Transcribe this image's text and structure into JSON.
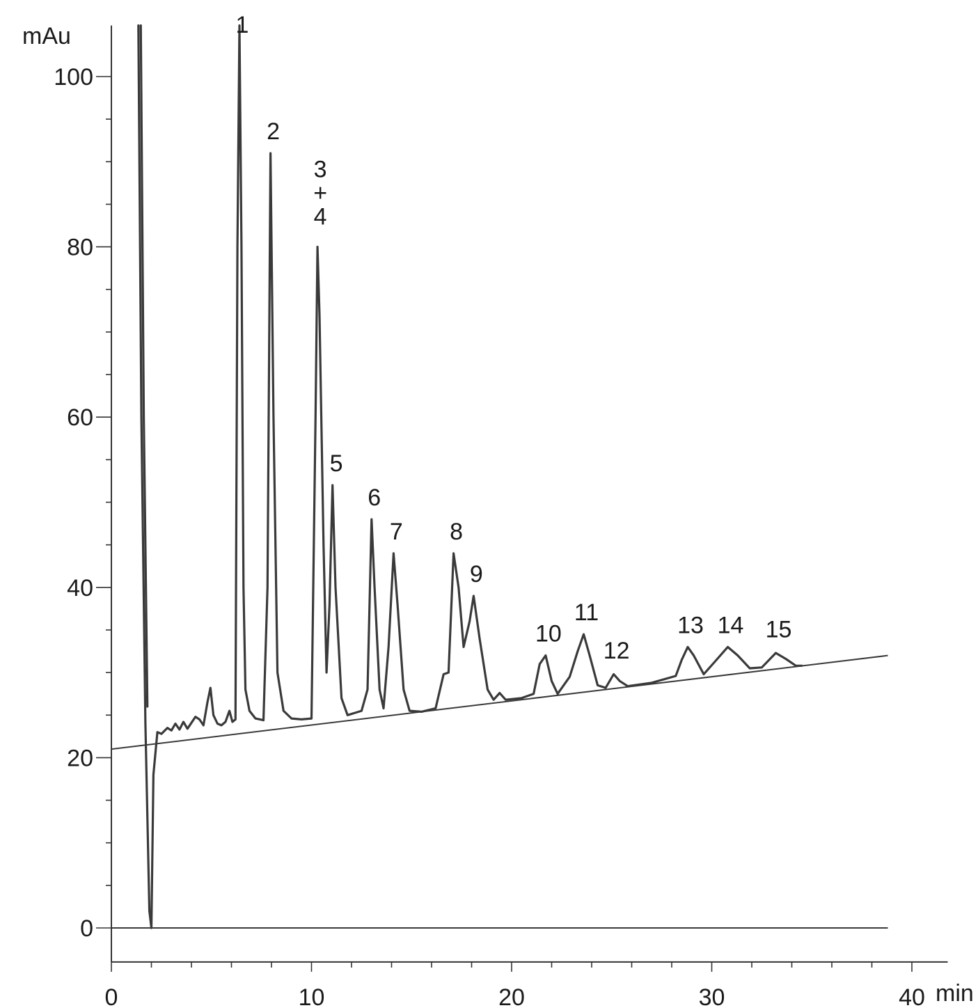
{
  "chart_data": {
    "type": "line",
    "x_unit": "min",
    "y_unit": "mAu",
    "xlim": [
      0,
      42
    ],
    "ylim": [
      -4,
      106
    ],
    "x_ticks": [
      0,
      10,
      20,
      30,
      40
    ],
    "y_ticks": [
      0,
      20,
      40,
      60,
      80,
      100
    ],
    "x_tick_labels": [
      "0",
      "10",
      "20",
      "30",
      "40"
    ],
    "y_tick_labels": [
      "0",
      "20",
      "40",
      "60",
      "80",
      "100"
    ],
    "grid": false,
    "baseline": {
      "start": [
        0,
        21
      ],
      "end": [
        38.8,
        32
      ]
    },
    "zero_line": {
      "start": [
        0,
        0
      ],
      "end": [
        38.8,
        0
      ]
    },
    "peaks": [
      {
        "label": "1",
        "x": 6.4,
        "y": 105
      },
      {
        "label": "2",
        "x": 7.95,
        "y": 91
      },
      {
        "label": "3\n+\n4",
        "lines": [
          "3",
          "+",
          "4"
        ],
        "x": 10.3,
        "y": 80
      },
      {
        "label": "5",
        "x": 11.1,
        "y": 52
      },
      {
        "label": "6",
        "x": 13.0,
        "y": 48
      },
      {
        "label": "7",
        "x": 14.1,
        "y": 44
      },
      {
        "label": "8",
        "x": 17.1,
        "y": 44
      },
      {
        "label": "9",
        "x": 18.1,
        "y": 39
      },
      {
        "label": "10",
        "x": 21.7,
        "y": 32
      },
      {
        "label": "11",
        "x": 23.6,
        "y": 34.5
      },
      {
        "label": "12",
        "x": 25.1,
        "y": 30
      },
      {
        "label": "13",
        "x": 28.8,
        "y": 33
      },
      {
        "label": "14",
        "x": 30.8,
        "y": 33
      },
      {
        "label": "15",
        "x": 33.2,
        "y": 32.5
      }
    ],
    "trace": [
      [
        1.35,
        106
      ],
      [
        1.5,
        60
      ],
      [
        1.7,
        24
      ],
      [
        1.9,
        2
      ],
      [
        2.0,
        0
      ],
      [
        2.1,
        18
      ],
      [
        2.3,
        23
      ],
      [
        2.5,
        22.8
      ],
      [
        2.8,
        23.5
      ],
      [
        3.0,
        23.2
      ],
      [
        3.2,
        24
      ],
      [
        3.4,
        23.3
      ],
      [
        3.6,
        24.2
      ],
      [
        3.8,
        23.4
      ],
      [
        4.0,
        24.1
      ],
      [
        4.2,
        24.8
      ],
      [
        4.4,
        24.5
      ],
      [
        4.6,
        23.8
      ],
      [
        4.8,
        26.5
      ],
      [
        4.95,
        28.2
      ],
      [
        5.1,
        25
      ],
      [
        5.3,
        24
      ],
      [
        5.5,
        23.8
      ],
      [
        5.7,
        24.2
      ],
      [
        5.9,
        25.5
      ],
      [
        6.05,
        24.2
      ],
      [
        6.2,
        24.5
      ],
      [
        6.3,
        80
      ],
      [
        6.4,
        106
      ],
      [
        6.5,
        80
      ],
      [
        6.6,
        40
      ],
      [
        6.7,
        28
      ],
      [
        6.9,
        25.5
      ],
      [
        7.2,
        24.6
      ],
      [
        7.6,
        24.4
      ],
      [
        7.8,
        40
      ],
      [
        7.95,
        91
      ],
      [
        8.1,
        60
      ],
      [
        8.3,
        30
      ],
      [
        8.6,
        25.5
      ],
      [
        9.0,
        24.6
      ],
      [
        9.5,
        24.5
      ],
      [
        10.0,
        24.6
      ],
      [
        10.2,
        60
      ],
      [
        10.3,
        80
      ],
      [
        10.4,
        72
      ],
      [
        10.6,
        45
      ],
      [
        10.75,
        30
      ],
      [
        10.9,
        38
      ],
      [
        11.05,
        52
      ],
      [
        11.2,
        40
      ],
      [
        11.5,
        27
      ],
      [
        11.8,
        25
      ],
      [
        12.5,
        25.5
      ],
      [
        12.8,
        28
      ],
      [
        13.0,
        48
      ],
      [
        13.15,
        40
      ],
      [
        13.4,
        28
      ],
      [
        13.6,
        25.8
      ],
      [
        13.85,
        33
      ],
      [
        14.1,
        44
      ],
      [
        14.3,
        38
      ],
      [
        14.6,
        28
      ],
      [
        14.9,
        25.5
      ],
      [
        15.5,
        25.4
      ],
      [
        16.2,
        25.8
      ],
      [
        16.6,
        29.8
      ],
      [
        16.85,
        30
      ],
      [
        17.1,
        44
      ],
      [
        17.35,
        40
      ],
      [
        17.6,
        33
      ],
      [
        17.9,
        36
      ],
      [
        18.1,
        39
      ],
      [
        18.4,
        34
      ],
      [
        18.8,
        28
      ],
      [
        19.1,
        26.8
      ],
      [
        19.4,
        27.6
      ],
      [
        19.7,
        26.8
      ],
      [
        20.5,
        27
      ],
      [
        21.1,
        27.5
      ],
      [
        21.4,
        31
      ],
      [
        21.7,
        32
      ],
      [
        22.0,
        29
      ],
      [
        22.3,
        27.5
      ],
      [
        22.9,
        29.5
      ],
      [
        23.3,
        32.5
      ],
      [
        23.6,
        34.5
      ],
      [
        23.9,
        32
      ],
      [
        24.3,
        28.5
      ],
      [
        24.7,
        28.2
      ],
      [
        25.1,
        29.8
      ],
      [
        25.4,
        29
      ],
      [
        25.8,
        28.4
      ],
      [
        27.0,
        28.8
      ],
      [
        28.2,
        29.6
      ],
      [
        28.5,
        31.5
      ],
      [
        28.8,
        33
      ],
      [
        29.1,
        32
      ],
      [
        29.6,
        29.8
      ],
      [
        30.2,
        31.4
      ],
      [
        30.8,
        33
      ],
      [
        31.3,
        32
      ],
      [
        31.9,
        30.5
      ],
      [
        32.5,
        30.6
      ],
      [
        33.2,
        32.3
      ],
      [
        33.7,
        31.6
      ],
      [
        34.2,
        30.8
      ],
      [
        34.5,
        30.8
      ]
    ]
  }
}
